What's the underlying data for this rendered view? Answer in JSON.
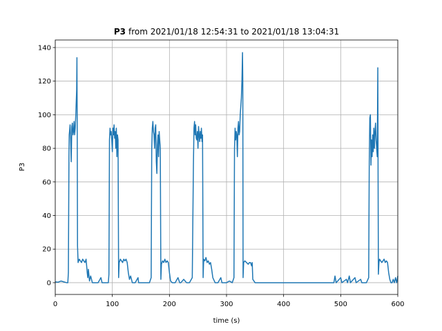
{
  "chart_data": {
    "type": "line",
    "title_bold": "P3",
    "title": "from 2021/01/18 12:54:31 to 2021/01/18 13:04:31",
    "xlabel": "time (s)",
    "ylabel": "P3",
    "color": "#1f77b4",
    "grid": true,
    "xlim": [
      0,
      600
    ],
    "ylim": [
      -7,
      144.5
    ],
    "xticks": [
      0,
      100,
      200,
      300,
      400,
      500,
      600
    ],
    "yticks": [
      0,
      20,
      40,
      60,
      80,
      100,
      120,
      140
    ],
    "x": [
      0,
      5,
      10,
      15,
      20,
      22,
      23,
      24,
      24.5,
      25,
      26,
      27,
      28,
      29,
      30,
      31,
      32,
      33,
      34,
      35,
      36,
      37,
      37.5,
      38,
      38.5,
      39,
      40,
      42,
      44,
      46,
      48,
      50,
      52,
      54,
      55,
      56,
      57,
      58,
      60,
      62,
      65,
      70,
      75,
      80,
      82,
      85,
      90,
      93,
      94,
      95,
      96,
      97,
      98,
      99,
      100,
      101,
      102,
      103,
      104,
      105,
      106,
      107,
      108,
      109,
      110,
      111,
      112,
      114,
      116,
      118,
      120,
      122,
      124,
      126,
      128,
      130,
      132,
      135,
      140,
      145,
      146,
      150,
      155,
      160,
      165,
      168,
      169,
      170,
      171,
      172,
      173,
      174,
      175,
      176,
      177,
      178,
      179,
      180,
      181,
      182,
      183,
      184,
      185,
      186,
      188,
      190,
      192,
      194,
      196,
      198,
      200,
      202,
      205,
      210,
      215,
      218,
      220,
      225,
      230,
      235,
      240,
      242,
      243,
      244,
      245,
      246,
      247,
      248,
      249,
      250,
      251,
      252,
      253,
      254,
      255,
      256,
      257,
      258,
      259,
      260,
      262,
      264,
      266,
      268,
      270,
      272,
      274,
      276,
      280,
      285,
      290,
      292,
      295,
      300,
      305,
      310,
      313,
      314,
      315,
      316,
      317,
      318,
      319,
      320,
      321,
      322,
      323,
      324,
      325,
      326,
      327,
      328,
      328.5,
      329,
      330,
      332,
      335,
      338,
      340,
      342,
      344,
      345,
      346,
      350,
      360,
      400,
      450,
      488,
      490,
      492,
      500,
      502,
      510,
      512,
      515,
      517,
      525,
      527,
      535,
      537,
      545,
      549,
      550,
      551,
      552,
      553,
      554,
      555,
      556,
      557,
      558,
      559,
      560,
      561,
      562,
      563,
      564,
      565,
      565.5,
      566,
      567,
      568,
      570,
      572,
      574,
      576,
      578,
      580,
      582,
      584,
      586,
      588,
      590,
      592,
      594,
      596,
      598,
      600
    ],
    "values": [
      0.5,
      0.3,
      1,
      0.5,
      0,
      0,
      6,
      75,
      88,
      90,
      94,
      85,
      72,
      93,
      95,
      88,
      90,
      96,
      88,
      92,
      100,
      110,
      115,
      134,
      90,
      22,
      12,
      14,
      13,
      12,
      14,
      13,
      12,
      14,
      10,
      6,
      3,
      8,
      1,
      4,
      0,
      0,
      0,
      3,
      0,
      0,
      0,
      0,
      5,
      85,
      92,
      88,
      90,
      85,
      78,
      92,
      88,
      94,
      86,
      90,
      80,
      92,
      75,
      88,
      85,
      3,
      12,
      14,
      13,
      12,
      14,
      13,
      14,
      12,
      6,
      2,
      4,
      0,
      0,
      3,
      0,
      0,
      0,
      0,
      0,
      3,
      80,
      92,
      96,
      90,
      88,
      80,
      92,
      94,
      72,
      65,
      82,
      88,
      75,
      90,
      85,
      80,
      2,
      11,
      13,
      12,
      14,
      12,
      13,
      12,
      6,
      1,
      0,
      0,
      3,
      0,
      0,
      2,
      0,
      0,
      3,
      70,
      92,
      96,
      88,
      94,
      86,
      85,
      90,
      80,
      93,
      88,
      84,
      90,
      86,
      92,
      84,
      88,
      3,
      14,
      13,
      15,
      12,
      13,
      11,
      12,
      8,
      3,
      0,
      0,
      3,
      0,
      0,
      0,
      1,
      0,
      3,
      80,
      92,
      85,
      90,
      88,
      75,
      92,
      96,
      88,
      90,
      100,
      105,
      110,
      120,
      137,
      120,
      3,
      12,
      13,
      12,
      11,
      12,
      12,
      10,
      12,
      2,
      0,
      0,
      0,
      0,
      0,
      4,
      0,
      3,
      0,
      2,
      0,
      4,
      0,
      3,
      0,
      2,
      0,
      0,
      3,
      72,
      98,
      100,
      70,
      85,
      75,
      88,
      78,
      92,
      80,
      90,
      95,
      85,
      80,
      75,
      128,
      60,
      5,
      12,
      14,
      13,
      12,
      13,
      14,
      12,
      13,
      12,
      6,
      2,
      0,
      0,
      2,
      0,
      3,
      0,
      4
    ]
  }
}
